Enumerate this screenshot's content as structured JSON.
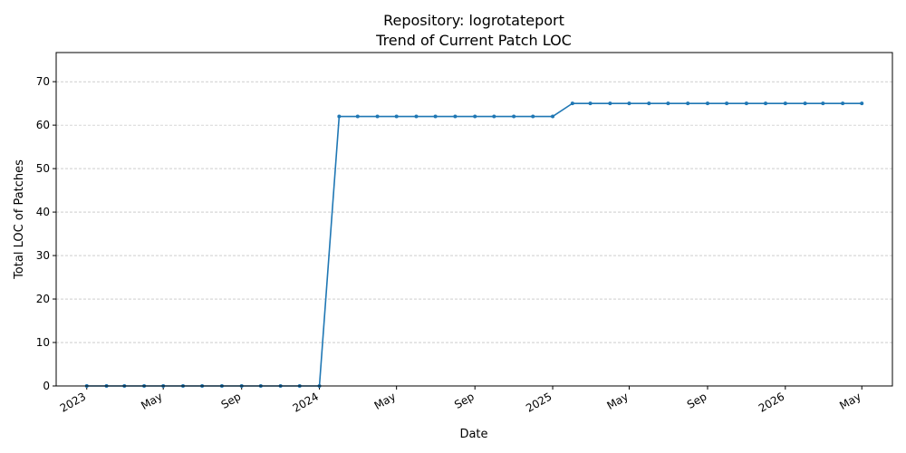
{
  "chart_data": {
    "type": "line",
    "title": "Repository: logrotateport",
    "subtitle": "Trend of Current Patch LOC",
    "xlabel": "Date",
    "ylabel": "Total LOC of Patches",
    "ylim": [
      0,
      76.7
    ],
    "xlim": [
      "2022-11-14",
      "2026-06-18"
    ],
    "y_ticks": [
      0,
      10,
      20,
      30,
      40,
      50,
      60,
      70
    ],
    "x_ticks": [
      {
        "date": "2023-01-01",
        "label": "2023"
      },
      {
        "date": "2023-05-01",
        "label": "May"
      },
      {
        "date": "2023-09-01",
        "label": "Sep"
      },
      {
        "date": "2024-01-01",
        "label": "2024"
      },
      {
        "date": "2024-05-01",
        "label": "May"
      },
      {
        "date": "2024-09-01",
        "label": "Sep"
      },
      {
        "date": "2025-01-01",
        "label": "2025"
      },
      {
        "date": "2025-05-01",
        "label": "May"
      },
      {
        "date": "2025-09-01",
        "label": "Sep"
      },
      {
        "date": "2026-01-01",
        "label": "2026"
      },
      {
        "date": "2026-05-01",
        "label": "May"
      }
    ],
    "grid": "y-dashed",
    "color": "#1f77b4",
    "x": [
      "2023-01-01",
      "2023-02-01",
      "2023-03-01",
      "2023-04-01",
      "2023-05-01",
      "2023-06-01",
      "2023-07-01",
      "2023-08-01",
      "2023-09-01",
      "2023-10-01",
      "2023-11-01",
      "2023-12-01",
      "2024-01-01",
      "2024-02-01",
      "2024-03-01",
      "2024-04-01",
      "2024-05-01",
      "2024-06-01",
      "2024-07-01",
      "2024-08-01",
      "2024-09-01",
      "2024-10-01",
      "2024-11-01",
      "2024-12-01",
      "2025-01-01",
      "2025-02-01",
      "2025-03-01",
      "2025-04-01",
      "2025-05-01",
      "2025-06-01",
      "2025-07-01",
      "2025-08-01",
      "2025-09-01",
      "2025-10-01",
      "2025-11-01",
      "2025-12-01",
      "2026-01-01",
      "2026-02-01",
      "2026-03-01",
      "2026-04-01",
      "2026-05-01"
    ],
    "y": [
      0,
      0,
      0,
      0,
      0,
      0,
      0,
      0,
      0,
      0,
      0,
      0,
      0,
      62,
      62,
      62,
      62,
      62,
      62,
      62,
      62,
      62,
      62,
      62,
      62,
      65,
      65,
      65,
      65,
      65,
      65,
      65,
      65,
      65,
      65,
      65,
      65,
      65,
      65,
      65,
      65
    ]
  }
}
